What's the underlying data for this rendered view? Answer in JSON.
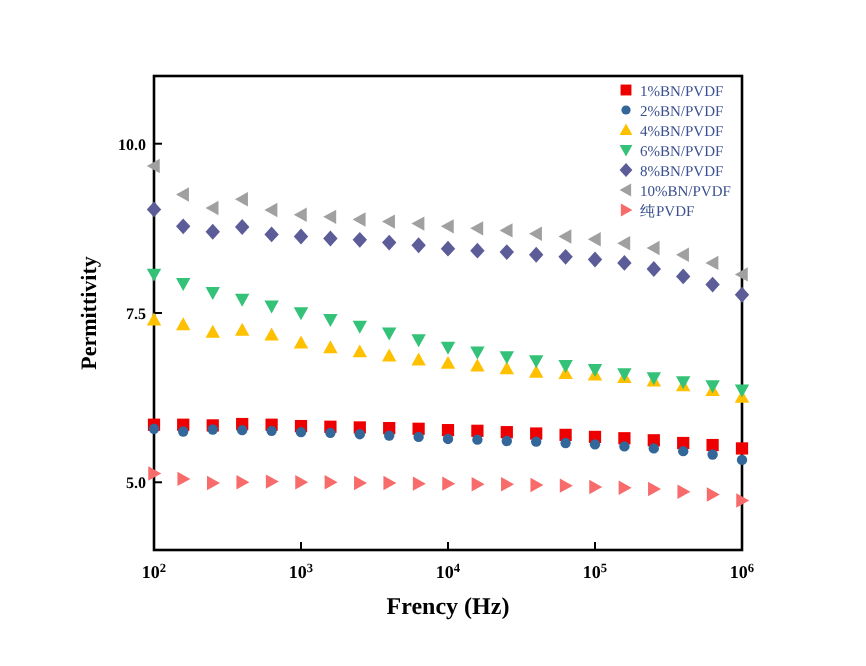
{
  "chart_data": {
    "type": "scatter",
    "xlabel": "Frency (Hz)",
    "ylabel": "Permittivity",
    "log": "x",
    "xlim": [
      100,
      1000000
    ],
    "xticks": [
      {
        "value": 100,
        "label": "10$^{2}$"
      },
      {
        "value": 1000,
        "label": "10$^{3}$"
      },
      {
        "value": 10000,
        "label": "10$^{4}$"
      },
      {
        "value": 100000,
        "label": "10$^{5}$"
      },
      {
        "value": 1000000,
        "label": "10$^{6}$"
      }
    ],
    "ylim": [
      4,
      11
    ],
    "yticks": [
      {
        "value": 5,
        "label": "5.0"
      },
      {
        "value": 7.5,
        "label": "7.5"
      },
      {
        "value": 10,
        "label": "10.0"
      }
    ],
    "grid": false,
    "legend": "top right",
    "x": [
      100,
      158,
      251,
      398,
      631,
      1000,
      1585,
      2512,
      3981,
      6310,
      10000,
      15849,
      25119,
      39811,
      63096,
      100000,
      158489,
      251189,
      398107,
      630957,
      1000000
    ],
    "series": [
      {
        "name": "1%BN/PVDF",
        "color": "#ee0000",
        "marker": "square",
        "values": [
          5.85,
          5.85,
          5.84,
          5.86,
          5.85,
          5.83,
          5.82,
          5.81,
          5.8,
          5.79,
          5.77,
          5.76,
          5.74,
          5.72,
          5.7,
          5.67,
          5.65,
          5.62,
          5.58,
          5.55,
          5.5
        ]
      },
      {
        "name": "2%BN/PVDF",
        "color": "#336699",
        "marker": "circle",
        "values": [
          5.79,
          5.75,
          5.78,
          5.77,
          5.76,
          5.74,
          5.73,
          5.71,
          5.69,
          5.67,
          5.64,
          5.63,
          5.61,
          5.6,
          5.58,
          5.56,
          5.53,
          5.5,
          5.46,
          5.41,
          5.33
        ]
      },
      {
        "name": "4%BN/PVDF",
        "color": "#ffc000",
        "marker": "triangle",
        "values": [
          7.4,
          7.33,
          7.22,
          7.25,
          7.18,
          7.06,
          6.99,
          6.93,
          6.87,
          6.81,
          6.76,
          6.72,
          6.68,
          6.63,
          6.61,
          6.59,
          6.55,
          6.5,
          6.43,
          6.36,
          6.26
        ]
      },
      {
        "name": "6%BN/PVDF",
        "color": "#33c277",
        "marker": "triangle-down",
        "values": [
          8.07,
          7.93,
          7.8,
          7.7,
          7.6,
          7.5,
          7.4,
          7.3,
          7.2,
          7.1,
          6.99,
          6.92,
          6.85,
          6.79,
          6.72,
          6.66,
          6.6,
          6.54,
          6.48,
          6.42,
          6.36
        ]
      },
      {
        "name": "8%BN/PVDF",
        "color": "#5c5c99",
        "marker": "diamond",
        "values": [
          9.03,
          8.78,
          8.7,
          8.77,
          8.66,
          8.63,
          8.6,
          8.58,
          8.54,
          8.5,
          8.45,
          8.42,
          8.4,
          8.36,
          8.33,
          8.29,
          8.24,
          8.15,
          8.04,
          7.92,
          7.77
        ]
      },
      {
        "name": "10%BN/PVDF",
        "color": "#a0a0a0",
        "marker": "triangle-left",
        "values": [
          9.67,
          9.25,
          9.05,
          9.18,
          9.02,
          8.95,
          8.92,
          8.88,
          8.85,
          8.82,
          8.78,
          8.75,
          8.72,
          8.67,
          8.63,
          8.59,
          8.53,
          8.46,
          8.36,
          8.24,
          8.07
        ]
      },
      {
        "name": "纯PVDF",
        "color": "#f76b6b",
        "marker": "triangle-right",
        "values": [
          5.13,
          5.05,
          4.99,
          5.0,
          5.01,
          5.0,
          5.0,
          4.99,
          4.99,
          4.98,
          4.98,
          4.97,
          4.97,
          4.96,
          4.95,
          4.93,
          4.92,
          4.9,
          4.86,
          4.82,
          4.73
        ]
      }
    ]
  }
}
